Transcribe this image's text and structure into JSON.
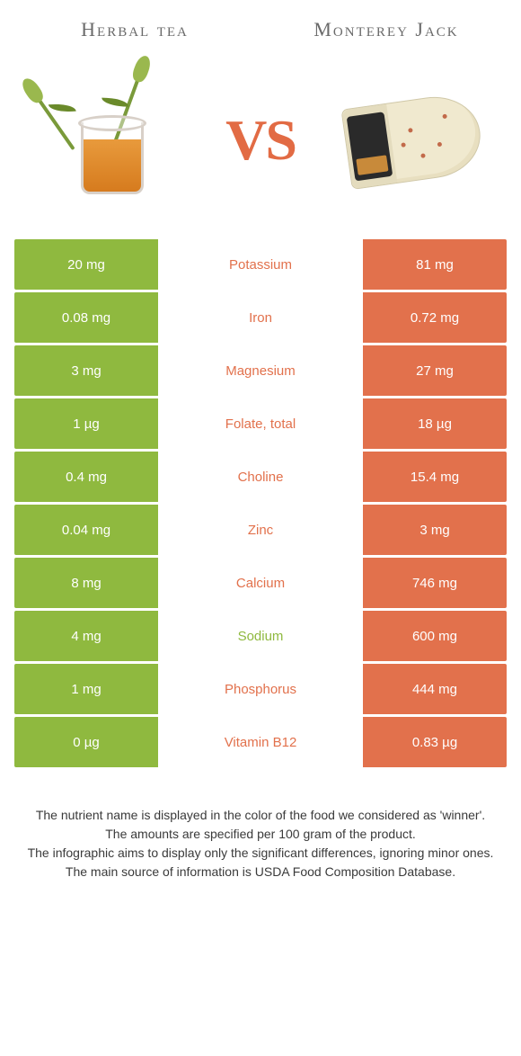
{
  "colors": {
    "left": "#8fb93f",
    "right": "#e2714c",
    "vs": "#e26b44",
    "title": "#6a6a6a",
    "row_bg_left": "#8fb93f",
    "row_bg_right": "#e2714c",
    "footer_text": "#3a3a3a"
  },
  "header": {
    "left_title": "Herbal tea",
    "right_title": "Monterey Jack",
    "vs": "VS"
  },
  "rows": [
    {
      "name": "Potassium",
      "left": "20 mg",
      "right": "81 mg",
      "winner": "right"
    },
    {
      "name": "Iron",
      "left": "0.08 mg",
      "right": "0.72 mg",
      "winner": "right"
    },
    {
      "name": "Magnesium",
      "left": "3 mg",
      "right": "27 mg",
      "winner": "right"
    },
    {
      "name": "Folate, total",
      "left": "1 µg",
      "right": "18 µg",
      "winner": "right"
    },
    {
      "name": "Choline",
      "left": "0.4 mg",
      "right": "15.4 mg",
      "winner": "right"
    },
    {
      "name": "Zinc",
      "left": "0.04 mg",
      "right": "3 mg",
      "winner": "right"
    },
    {
      "name": "Calcium",
      "left": "8 mg",
      "right": "746 mg",
      "winner": "right"
    },
    {
      "name": "Sodium",
      "left": "4 mg",
      "right": "600 mg",
      "winner": "left"
    },
    {
      "name": "Phosphorus",
      "left": "1 mg",
      "right": "444 mg",
      "winner": "right"
    },
    {
      "name": "Vitamin B12",
      "left": "0 µg",
      "right": "0.83 µg",
      "winner": "right"
    }
  ],
  "footer": {
    "line1": "The nutrient name is displayed in the color of the food we considered as 'winner'.",
    "line2": "The amounts are specified per 100 gram of the product.",
    "line3": "The infographic aims to display only the significant differences, ignoring minor ones.",
    "line4": "The main source of information is USDA Food Composition Database."
  }
}
